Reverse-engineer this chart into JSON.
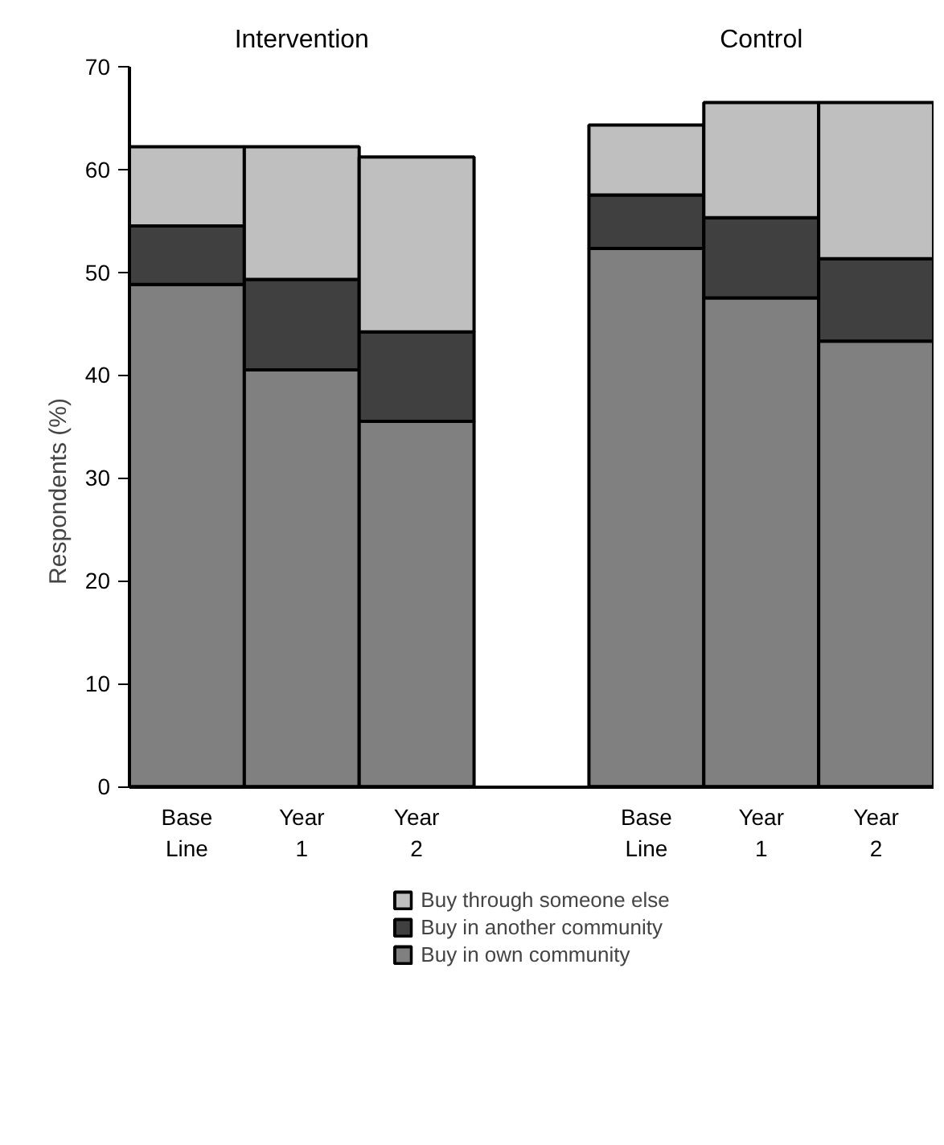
{
  "chart_data": {
    "type": "bar",
    "stacked": true,
    "categories": [
      "Base\nLine",
      "Year\n1",
      "Year\n2",
      null,
      "Base\nLine",
      "Year\n1",
      "Year\n2"
    ],
    "series": [
      {
        "name": "Buy in own community",
        "color": "#808080",
        "values": [
          48.8,
          40.5,
          35.5,
          null,
          52.3,
          47.5,
          43.3
        ]
      },
      {
        "name": "Buy in another community",
        "color": "#404040",
        "values": [
          5.7,
          8.8,
          8.7,
          null,
          5.2,
          7.8,
          8.0
        ]
      },
      {
        "name": "Buy through someone else",
        "color": "#bfbfbf",
        "values": [
          7.7,
          12.9,
          17.0,
          null,
          6.8,
          11.2,
          15.2
        ]
      }
    ],
    "ylabel": "Respondents (%)",
    "ylim": [
      0,
      70
    ],
    "yticks": [
      0,
      10,
      20,
      30,
      40,
      50,
      60,
      70
    ],
    "annotations": [
      "Intervention",
      "Control"
    ],
    "legend": "bottom",
    "grid": false
  }
}
